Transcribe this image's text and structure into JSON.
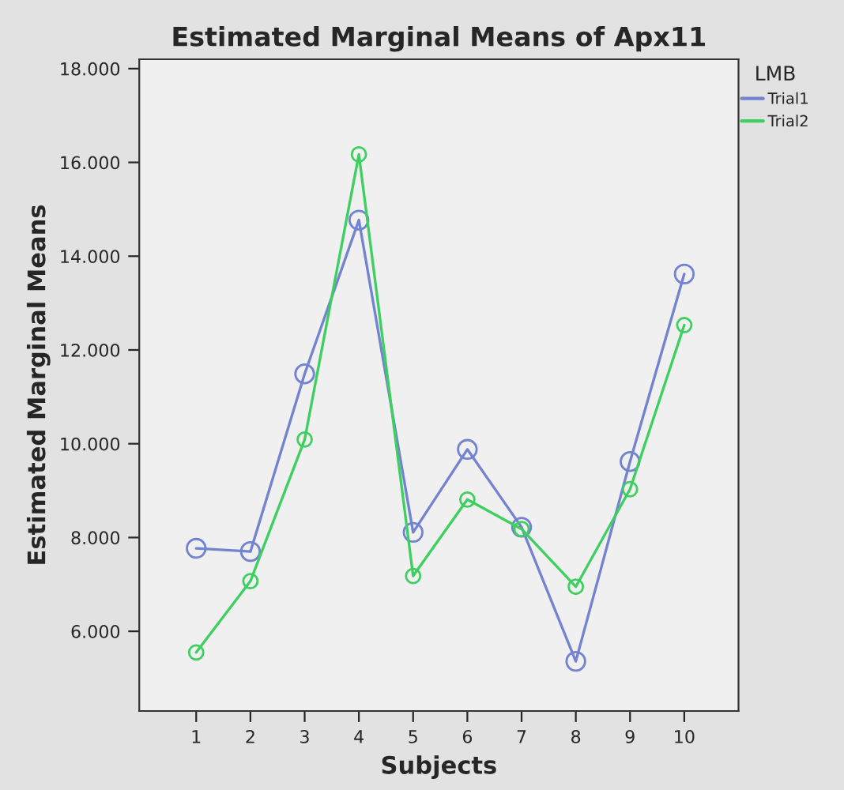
{
  "chart_data": {
    "type": "line",
    "title": "Estimated Marginal Means of Apx11",
    "xlabel": "Subjects",
    "ylabel": "Estimated Marginal Means",
    "legend_title": "LMB",
    "categories": [
      "1",
      "2",
      "3",
      "4",
      "5",
      "6",
      "7",
      "8",
      "9",
      "10"
    ],
    "series": [
      {
        "name": "Trial1",
        "color": "#7383cf",
        "values": [
          7.77,
          7.7,
          11.49,
          14.77,
          8.11,
          9.88,
          8.22,
          5.36,
          9.62,
          13.62
        ]
      },
      {
        "name": "Trial2",
        "color": "#3dcf5f",
        "values": [
          5.55,
          7.07,
          10.09,
          16.17,
          7.18,
          8.81,
          8.18,
          6.95,
          9.03,
          12.53
        ]
      }
    ],
    "ylim": [
      4.3,
      18.2
    ],
    "yticks": [
      {
        "value": 6,
        "label": "6.000"
      },
      {
        "value": 8,
        "label": "8.000"
      },
      {
        "value": 10,
        "label": "10.000"
      },
      {
        "value": 12,
        "label": "12.000"
      },
      {
        "value": 14,
        "label": "14.000"
      },
      {
        "value": 16,
        "label": "16.000"
      },
      {
        "value": 18,
        "label": "18.000"
      }
    ],
    "grid": false,
    "legend": "top right",
    "marker": "circle",
    "line_style": "solid"
  }
}
